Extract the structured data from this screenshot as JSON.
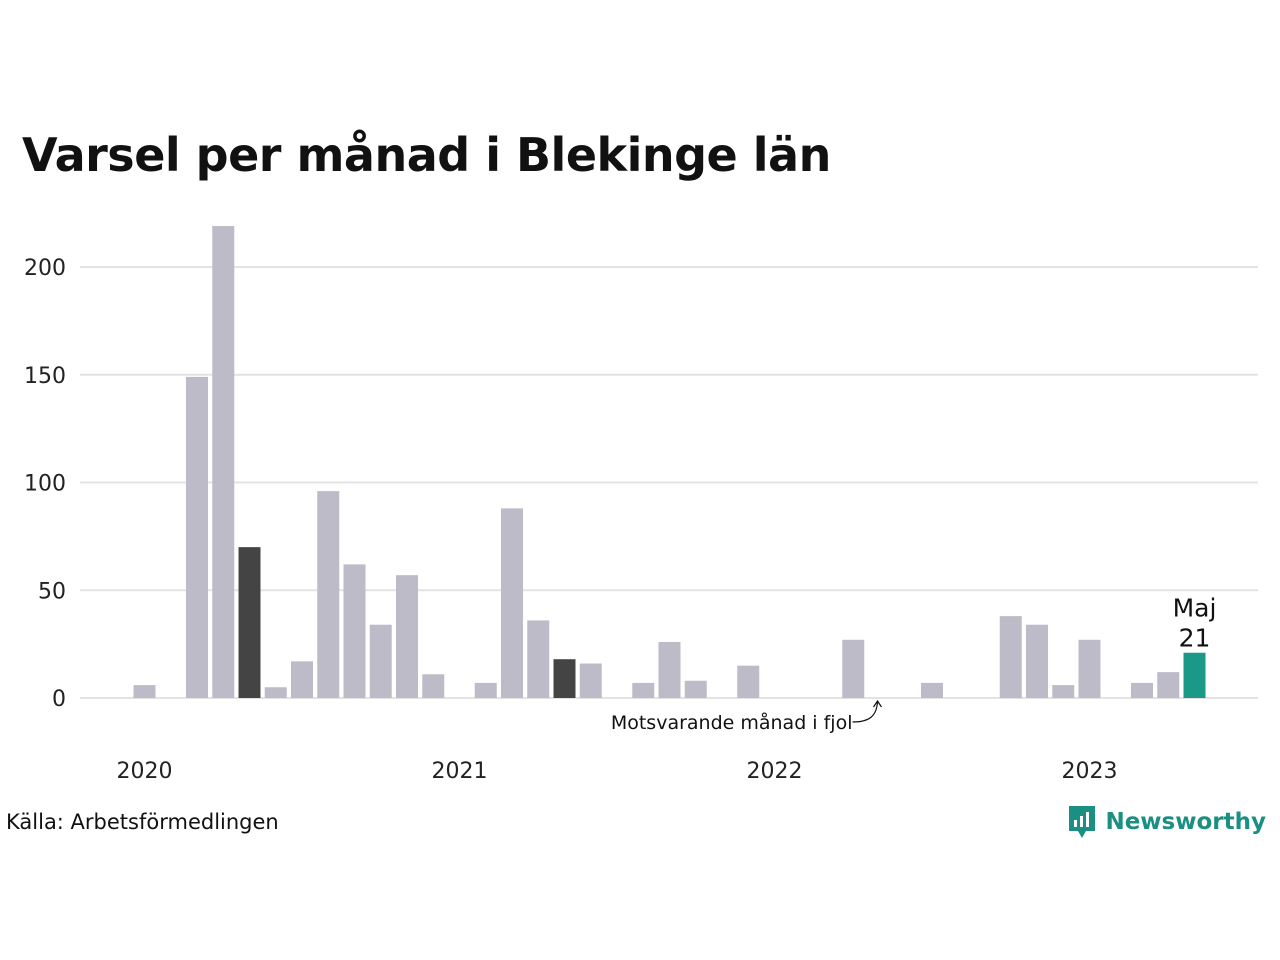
{
  "chart_data": {
    "type": "bar",
    "title": "Varsel per månad i Blekinge län",
    "source": "Källa: Arbetsförmedlingen",
    "brand": "Newsworthy",
    "ylim": [
      0,
      220
    ],
    "y_ticks": [
      0,
      50,
      100,
      150,
      200
    ],
    "x_tick_labels": [
      {
        "label": "2020",
        "month_index": 0
      },
      {
        "label": "2021",
        "month_index": 12
      },
      {
        "label": "2022",
        "month_index": 24
      },
      {
        "label": "2023",
        "month_index": 36
      }
    ],
    "start_month": "2020-01",
    "values": [
      6,
      null,
      149,
      219,
      70,
      5,
      17,
      96,
      62,
      34,
      57,
      11,
      null,
      7,
      88,
      36,
      18,
      16,
      null,
      7,
      26,
      8,
      null,
      15,
      null,
      null,
      null,
      27,
      null,
      null,
      7,
      null,
      null,
      38,
      34,
      6,
      27,
      null,
      7,
      12,
      21
    ],
    "highlight_previous_year": [
      4,
      16
    ],
    "highlight_current": 40,
    "current_label_month": "Maj",
    "current_label_value": "21",
    "annotation": "Motsvarande månad i fjol",
    "grid": true,
    "colors": {
      "bar": "#bdbbc8",
      "previous_year": "#444444",
      "current": "#1a9988",
      "grid": "#e3e3e3",
      "brand": "#1a8f82"
    }
  }
}
